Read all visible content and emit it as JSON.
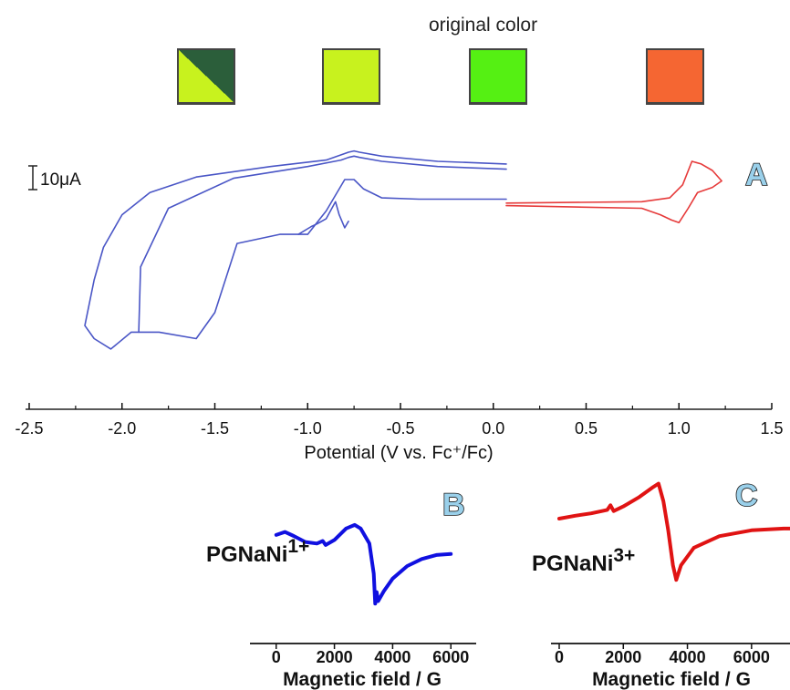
{
  "swatches": {
    "title": "original color",
    "items": [
      {
        "color_a": "#c8f21e",
        "color_b": "#2b5e3a",
        "split": true
      },
      {
        "color_a": "#c8f21e",
        "split": false
      },
      {
        "color_a": "#55f013",
        "split": false
      },
      {
        "color_a": "#f56632",
        "split": false
      }
    ]
  },
  "scale_bar_label": "10μA",
  "chart_data": [
    {
      "type": "line",
      "panel": "A",
      "xlabel": "Potential (V vs. Fc⁺/Fc)",
      "xlim": [
        -2.5,
        1.5
      ],
      "x_ticks": [
        "-2.5",
        "-2.0",
        "-1.5",
        "-1.0",
        "-0.5",
        "0.0",
        "0.5",
        "1.0",
        "1.5"
      ],
      "series": [
        {
          "color": "#4a56c6",
          "x": [
            0.07,
            -0.3,
            -0.6,
            -0.72,
            -0.75,
            -0.78,
            -0.82,
            -0.9,
            -1.2,
            -1.6,
            -1.85,
            -2.0,
            -2.1,
            -2.15,
            -2.2,
            -2.15,
            -2.06,
            -1.95,
            -1.8,
            -1.6,
            -1.5,
            -1.38,
            -1.15,
            -1.05,
            -1.0,
            -0.9,
            -0.8,
            -0.75,
            -0.7,
            -0.6,
            -0.4,
            0.07
          ],
          "y": [
            0.84,
            0.86,
            0.9,
            0.93,
            0.94,
            0.93,
            0.91,
            0.87,
            0.82,
            0.74,
            0.62,
            0.45,
            0.2,
            -0.05,
            -0.4,
            -0.5,
            -0.58,
            -0.45,
            -0.45,
            -0.5,
            -0.3,
            0.23,
            0.3,
            0.3,
            0.3,
            0.48,
            0.72,
            0.72,
            0.65,
            0.58,
            0.57,
            0.57
          ]
        },
        {
          "color": "#4a56c6",
          "x": [
            0.07,
            -0.3,
            -0.6,
            -0.72,
            -0.75,
            -0.78,
            -0.82,
            -1.0,
            -1.4,
            -1.75,
            -1.9,
            -1.91
          ],
          "y": [
            0.8,
            0.82,
            0.86,
            0.89,
            0.9,
            0.89,
            0.87,
            0.82,
            0.73,
            0.5,
            0.05,
            -0.45
          ]
        },
        {
          "color": "#4a56c6",
          "x": [
            -1.05,
            -0.98,
            -0.95,
            -0.9,
            -0.85,
            -0.83,
            -0.8,
            -0.78
          ],
          "y": [
            0.3,
            0.36,
            0.38,
            0.42,
            0.55,
            0.45,
            0.35,
            0.4
          ]
        },
        {
          "color": "#e63a3a",
          "x": [
            0.07,
            0.8,
            0.95,
            1.02,
            1.07,
            1.12,
            1.18,
            1.23,
            1.18,
            1.1,
            1.05,
            1.0,
            0.96,
            0.9,
            0.8,
            0.07
          ],
          "y": [
            0.54,
            0.55,
            0.58,
            0.68,
            0.86,
            0.84,
            0.79,
            0.71,
            0.66,
            0.62,
            0.5,
            0.39,
            0.41,
            0.45,
            0.5,
            0.52
          ]
        }
      ]
    },
    {
      "type": "line",
      "panel": "B",
      "xlabel": "Magnetic field / G",
      "xlim": [
        -400,
        6400
      ],
      "x_ticks": [
        "0",
        "2000",
        "4000",
        "6000"
      ],
      "series": [
        {
          "color": "#1010e0",
          "x": [
            0,
            300,
            600,
            1000,
            1400,
            1600,
            1700,
            2000,
            2400,
            2700,
            2900,
            3200,
            3350,
            3400,
            3450,
            3500,
            3700,
            4000,
            4500,
            5000,
            5500,
            6000
          ],
          "y": [
            0.42,
            0.48,
            0.4,
            0.28,
            0.25,
            0.3,
            0.22,
            0.32,
            0.55,
            0.62,
            0.55,
            0.25,
            -0.35,
            -0.95,
            -0.72,
            -0.9,
            -0.7,
            -0.45,
            -0.2,
            -0.06,
            0.02,
            0.04
          ]
        }
      ]
    },
    {
      "type": "line",
      "panel": "C",
      "xlabel": "Magnetic field / G",
      "xlim": [
        0,
        7200
      ],
      "x_ticks": [
        "0",
        "2000",
        "4000",
        "6000"
      ],
      "series": [
        {
          "color": "#e01313",
          "x": [
            0,
            500,
            1000,
            1500,
            1600,
            1700,
            2000,
            2500,
            2900,
            3100,
            3250,
            3400,
            3550,
            3650,
            3800,
            4200,
            5000,
            6000,
            7000,
            7200
          ],
          "y": [
            0.25,
            0.3,
            0.34,
            0.4,
            0.48,
            0.38,
            0.46,
            0.62,
            0.78,
            0.85,
            0.55,
            0.05,
            -0.55,
            -0.8,
            -0.55,
            -0.25,
            -0.05,
            0.05,
            0.08,
            0.08
          ]
        }
      ]
    }
  ],
  "panels": {
    "a": {
      "letter": "A"
    },
    "b": {
      "letter": "B",
      "label": "PGNaNi",
      "charge": "1+"
    },
    "c": {
      "letter": "C",
      "label": "PGNaNi",
      "charge": "3+"
    }
  }
}
